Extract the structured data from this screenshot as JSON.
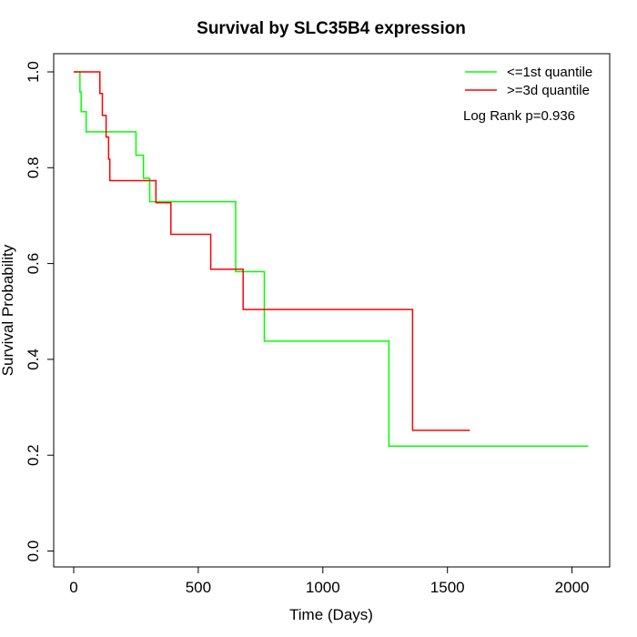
{
  "chart_data": {
    "type": "line",
    "title": "Survival by SLC35B4 expression",
    "xlabel": "Time (Days)",
    "ylabel": "Survival Probability",
    "xlim": [
      0,
      2070
    ],
    "ylim": [
      0,
      1
    ],
    "x_ticks": [
      0,
      500,
      1000,
      1500,
      2000
    ],
    "y_ticks": [
      0.0,
      0.2,
      0.4,
      0.6,
      0.8,
      1.0
    ],
    "x_tick_labels": [
      "0",
      "500",
      "1000",
      "1500",
      "2000"
    ],
    "y_tick_labels": [
      "0.0",
      "0.2",
      "0.4",
      "0.6",
      "0.8",
      "1.0"
    ],
    "legend_position": "top-right",
    "annotation": "Log Rank p=0.936",
    "series": [
      {
        "name": "<=1st quantile",
        "color": "#00ff00",
        "steps": [
          [
            0,
            1.0
          ],
          [
            25,
            0.958
          ],
          [
            30,
            0.917
          ],
          [
            50,
            0.875
          ],
          [
            250,
            0.826
          ],
          [
            280,
            0.778
          ],
          [
            305,
            0.729
          ],
          [
            650,
            0.583
          ],
          [
            765,
            0.438
          ],
          [
            1265,
            0.219
          ],
          [
            2065,
            0.219
          ]
        ]
      },
      {
        "name": ">=3d quantile",
        "color": "#ff0000",
        "steps": [
          [
            0,
            1.0
          ],
          [
            105,
            0.955
          ],
          [
            115,
            0.909
          ],
          [
            130,
            0.864
          ],
          [
            140,
            0.818
          ],
          [
            145,
            0.773
          ],
          [
            330,
            0.727
          ],
          [
            390,
            0.661
          ],
          [
            550,
            0.588
          ],
          [
            680,
            0.504
          ],
          [
            1360,
            0.252
          ],
          [
            1590,
            0.252
          ]
        ]
      }
    ]
  }
}
